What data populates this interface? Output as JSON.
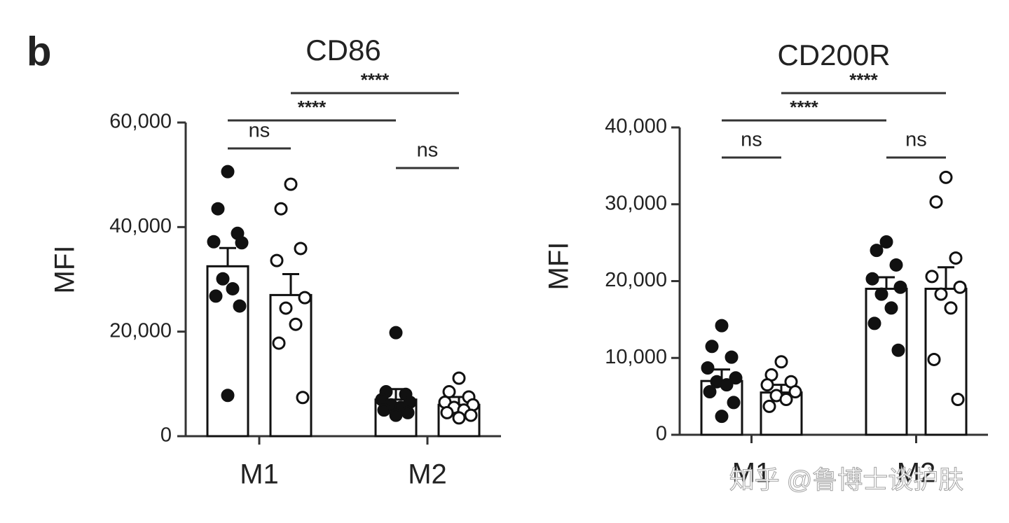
{
  "panel_label": "b",
  "watermark": "知乎 @鲁博士谈护肤",
  "chart_data": [
    {
      "type": "bar",
      "title": "CD86",
      "y_label": "MFI",
      "categories": [
        "M1",
        "M2"
      ],
      "ylim": [
        0,
        60000
      ],
      "yticks": [
        0,
        {
          "value": 20000,
          "label": "20,000"
        },
        {
          "value": 40000,
          "label": "40,000"
        },
        {
          "value": 60000,
          "label": "60,000"
        }
      ],
      "annotations": [
        "ns",
        "****",
        "****",
        "ns"
      ],
      "series": [
        {
          "marker": "filled",
          "color": "#111111",
          "values": [
            32500,
            7000
          ],
          "errors": [
            3500,
            2000
          ],
          "points": [
            [
              50600,
              43500,
              38800,
              37200,
              37000,
              30100,
              28200,
              26800,
              24900,
              7800
            ],
            [
              19800,
              8500,
              8000,
              7000,
              6500,
              6000,
              5500,
              5000,
              4500,
              4000
            ]
          ]
        },
        {
          "marker": "open",
          "color": "#111111",
          "values": [
            27000,
            6000
          ],
          "errors": [
            4000,
            1500
          ],
          "points": [
            [
              48200,
              43500,
              35900,
              33600,
              26500,
              24500,
              21400,
              17800,
              7400
            ],
            [
              11100,
              8500,
              7500,
              6500,
              6000,
              5500,
              5000,
              4500,
              4000,
              3500
            ]
          ]
        }
      ]
    },
    {
      "type": "bar",
      "title": "CD200R",
      "y_label": "MFI",
      "categories": [
        "M1",
        "M2"
      ],
      "ylim": [
        0,
        40000
      ],
      "yticks": [
        0,
        {
          "value": 10000,
          "label": "10,000"
        },
        {
          "value": 20000,
          "label": "20,000"
        },
        {
          "value": 30000,
          "label": "30,000"
        },
        {
          "value": 40000,
          "label": "40,000"
        }
      ],
      "annotations": [
        "ns",
        "****",
        "****",
        "ns"
      ],
      "series": [
        {
          "marker": "filled",
          "color": "#111111",
          "values": [
            7000,
            19000
          ],
          "errors": [
            1500,
            1500
          ],
          "points": [
            [
              14200,
              11500,
              10100,
              8700,
              7400,
              6900,
              6500,
              5600,
              4200,
              2400
            ],
            [
              25100,
              24000,
              22100,
              20300,
              19200,
              18300,
              16500,
              14500,
              11000
            ]
          ]
        },
        {
          "marker": "open",
          "color": "#111111",
          "values": [
            5500,
            19000
          ],
          "errors": [
            1000,
            2800
          ],
          "points": [
            [
              9500,
              7800,
              6900,
              6500,
              5600,
              5100,
              4600,
              3700
            ],
            [
              33500,
              30300,
              23000,
              20600,
              19200,
              18300,
              16500,
              9800,
              4600
            ]
          ]
        }
      ]
    }
  ]
}
